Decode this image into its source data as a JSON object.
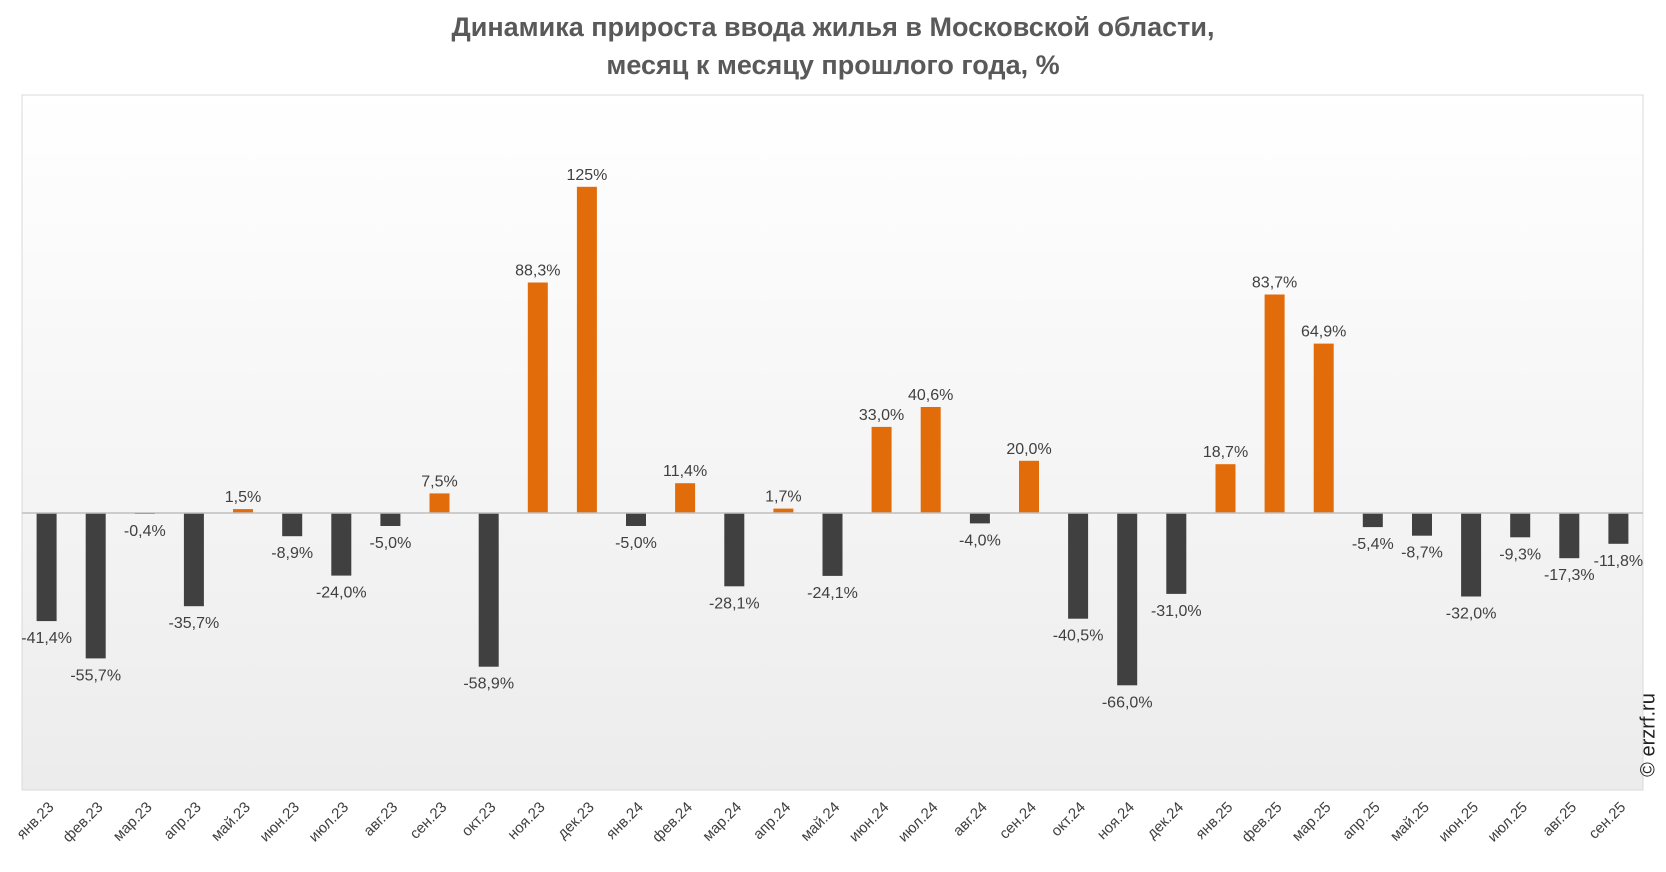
{
  "chart_data": {
    "type": "bar",
    "title_lines": [
      "Динамика прироста ввода жилья в Московской области,",
      "месяц к месяцу прошлого года, %"
    ],
    "categories": [
      "янв.23",
      "фев.23",
      "мар.23",
      "апр.23",
      "май.23",
      "июн.23",
      "июл.23",
      "авг.23",
      "сен.23",
      "окт.23",
      "ноя.23",
      "дек.23",
      "янв.24",
      "фев.24",
      "мар.24",
      "апр.24",
      "май.24",
      "июн.24",
      "июл.24",
      "авг.24",
      "сен.24",
      "окт.24",
      "ноя.24",
      "дек.24",
      "янв.25",
      "фев.25",
      "мар.25",
      "апр.25",
      "май.25",
      "июн.25",
      "июл.25",
      "авг.25",
      "сен.25"
    ],
    "values": [
      -41.4,
      -55.7,
      -0.4,
      -35.7,
      1.5,
      -8.9,
      -24.0,
      -5.0,
      7.5,
      -58.9,
      88.3,
      125,
      -5.0,
      11.4,
      -28.1,
      1.7,
      -24.1,
      33.0,
      40.6,
      -4.0,
      20.0,
      -40.5,
      -66.0,
      -31.0,
      18.7,
      83.7,
      64.9,
      -5.4,
      -8.7,
      -32.0,
      -9.3,
      -17.3,
      -11.8
    ],
    "data_labels": [
      "-41,4%",
      "-55,7%",
      "-0,4%",
      "-35,7%",
      "1,5%",
      "-8,9%",
      "-24,0%",
      "-5,0%",
      "7,5%",
      "-58,9%",
      "88,3%",
      "125%",
      "-5,0%",
      "11,4%",
      "-28,1%",
      "1,7%",
      "-24,1%",
      "33,0%",
      "40,6%",
      "-4,0%",
      "20,0%",
      "-40,5%",
      "-66,0%",
      "-31,0%",
      "18,7%",
      "83,7%",
      "64,9%",
      "-5,4%",
      "-8,7%",
      "-32,0%",
      "-9,3%",
      "-17,3%",
      "-11,8%"
    ],
    "xlabel": "",
    "ylabel": "",
    "ylim": [
      -100,
      150
    ],
    "grid": false,
    "legend": "none",
    "colors": {
      "positive": "#E36C0A",
      "negative": "#404040",
      "text": "#404040",
      "title": "#595959",
      "axis": "#BFBFBF",
      "plot_border": "#D9D9D9"
    }
  },
  "watermark": "© erzrf.ru"
}
